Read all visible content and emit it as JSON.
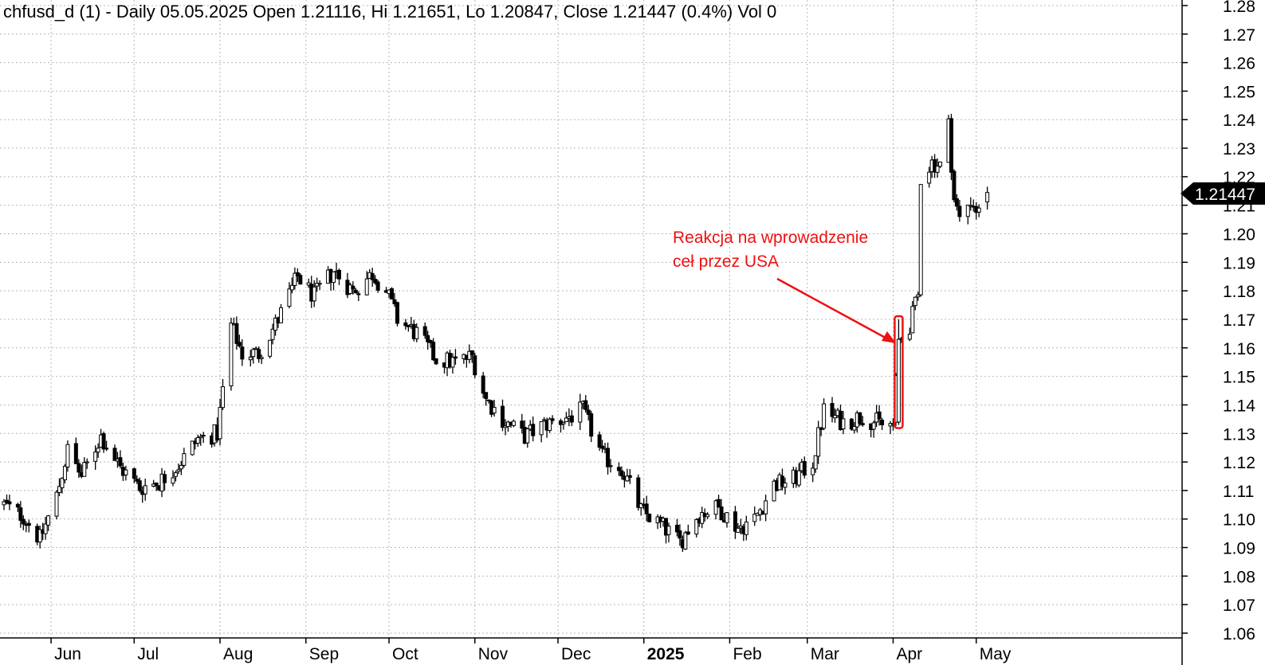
{
  "header": {
    "title": "chfusd_d (1) - Daily 05.05.2025 Open 1.21116, Hi 1.21651, Lo 1.20847, Close 1.21447 (0.4%) Vol 0"
  },
  "price_tag": {
    "label": "1.21447"
  },
  "annotation": {
    "line1": "Reakcja na wprowadzenie",
    "line2": "ceł przez USA"
  },
  "colors": {
    "background": "#ffffff",
    "grid": "#b8b8b8",
    "bars": "#000000",
    "annotation": "#ee1111",
    "price_tag_bg": "#000000",
    "price_tag_text": "#ffffff"
  },
  "chart_data": {
    "type": "candlestick",
    "symbol": "chfusd_d",
    "date": "05.05.2025",
    "last_bar": {
      "open": 1.21116,
      "high": 1.21651,
      "low": 1.20847,
      "close": 1.21447,
      "change_pct": "0.4%",
      "volume": 0
    },
    "ylim": [
      1.055,
      1.282
    ],
    "y_ticks": [
      "1.06",
      "1.07",
      "1.08",
      "1.09",
      "1.10",
      "1.11",
      "1.12",
      "1.13",
      "1.14",
      "1.15",
      "1.16",
      "1.17",
      "1.18",
      "1.19",
      "1.20",
      "1.21",
      "1.22",
      "1.23",
      "1.24",
      "1.25",
      "1.26",
      "1.27",
      "1.28"
    ],
    "x_ticks": [
      "Jun",
      "Jul",
      "Aug",
      "Sep",
      "Oct",
      "Nov",
      "Dec",
      "2025",
      "Feb",
      "Mar",
      "Apr",
      "May"
    ],
    "grid": true,
    "price_path": [
      [
        "2024-05-15",
        1.105
      ],
      [
        "2024-05-22",
        1.101
      ],
      [
        "2024-05-28",
        1.093
      ],
      [
        "2024-06-03",
        1.108
      ],
      [
        "2024-06-07",
        1.124
      ],
      [
        "2024-06-12",
        1.115
      ],
      [
        "2024-06-19",
        1.129
      ],
      [
        "2024-06-26",
        1.118
      ],
      [
        "2024-07-03",
        1.111
      ],
      [
        "2024-07-10",
        1.113
      ],
      [
        "2024-07-17",
        1.119
      ],
      [
        "2024-07-24",
        1.128
      ],
      [
        "2024-07-31",
        1.13
      ],
      [
        "2024-08-05",
        1.168
      ],
      [
        "2024-08-09",
        1.158
      ],
      [
        "2024-08-15",
        1.158
      ],
      [
        "2024-08-22",
        1.17
      ],
      [
        "2024-08-29",
        1.185
      ],
      [
        "2024-09-04",
        1.178
      ],
      [
        "2024-09-11",
        1.187
      ],
      [
        "2024-09-18",
        1.18
      ],
      [
        "2024-09-25",
        1.186
      ],
      [
        "2024-09-30",
        1.18
      ],
      [
        "2024-10-04",
        1.17
      ],
      [
        "2024-10-11",
        1.165
      ],
      [
        "2024-10-18",
        1.156
      ],
      [
        "2024-10-25",
        1.155
      ],
      [
        "2024-10-31",
        1.157
      ],
      [
        "2024-11-05",
        1.142
      ],
      [
        "2024-11-12",
        1.134
      ],
      [
        "2024-11-19",
        1.129
      ],
      [
        "2024-11-26",
        1.133
      ],
      [
        "2024-12-03",
        1.135
      ],
      [
        "2024-12-10",
        1.138
      ],
      [
        "2024-12-17",
        1.122
      ],
      [
        "2024-12-24",
        1.118
      ],
      [
        "2024-12-31",
        1.103
      ],
      [
        "2025-01-07",
        1.098
      ],
      [
        "2025-01-14",
        1.092
      ],
      [
        "2025-01-21",
        1.102
      ],
      [
        "2025-01-28",
        1.104
      ],
      [
        "2025-02-04",
        1.097
      ],
      [
        "2025-02-10",
        1.1
      ],
      [
        "2025-02-17",
        1.112
      ],
      [
        "2025-02-24",
        1.114
      ],
      [
        "2025-03-03",
        1.12
      ],
      [
        "2025-03-07",
        1.138
      ],
      [
        "2025-03-14",
        1.134
      ],
      [
        "2025-03-21",
        1.136
      ],
      [
        "2025-03-28",
        1.133
      ],
      [
        "2025-04-01",
        1.133
      ],
      [
        "2025-04-03",
        1.162
      ],
      [
        "2025-04-07",
        1.168
      ],
      [
        "2025-04-10",
        1.178
      ],
      [
        "2025-04-11",
        1.22
      ],
      [
        "2025-04-15",
        1.225
      ],
      [
        "2025-04-18",
        1.224
      ],
      [
        "2025-04-21",
        1.238
      ],
      [
        "2025-04-23",
        1.212
      ],
      [
        "2025-04-25",
        1.205
      ],
      [
        "2025-04-29",
        1.212
      ],
      [
        "2025-05-02",
        1.207
      ],
      [
        "2025-05-05",
        1.21447
      ]
    ],
    "highlighted_bar": {
      "date": "2025-04-03",
      "low": 1.133,
      "high": 1.17
    },
    "annotation_text": [
      "Reakcja na wprowadzenie",
      "ceł przez USA"
    ]
  }
}
